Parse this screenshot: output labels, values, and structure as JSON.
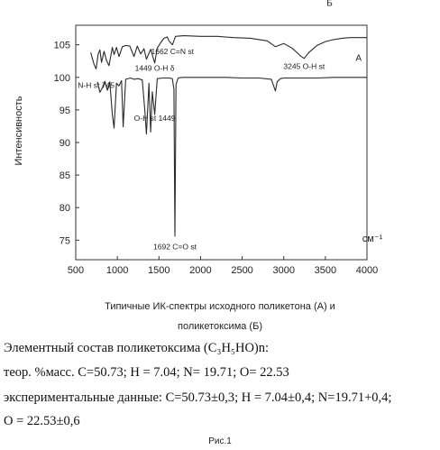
{
  "chart_data": {
    "type": "line",
    "xlabel": "см⁻¹",
    "ylabel": "Интенсивность",
    "xlim": [
      500,
      4000
    ],
    "ylim": [
      72,
      108
    ],
    "x_ticks": [
      500,
      1000,
      1500,
      2000,
      2500,
      3000,
      3500,
      4000
    ],
    "x_tick_labels": [
      "500",
      "1000",
      "1500",
      "2000",
      "2500",
      "3000",
      "3500",
      "4000"
    ],
    "y_ticks": [
      75,
      80,
      85,
      90,
      95,
      100,
      105
    ],
    "y_tick_labels": [
      "75",
      "80",
      "85",
      "90",
      "95",
      "100",
      "105"
    ],
    "grid": false,
    "legend": "none",
    "series": [
      {
        "name": "Б",
        "color": "#2a2a2a",
        "x": [
          680,
          720,
          745,
          770,
          790,
          810,
          840,
          870,
          900,
          940,
          960,
          990,
          1020,
          1060,
          1100,
          1150,
          1200,
          1240,
          1280,
          1320,
          1350,
          1400,
          1449,
          1480,
          1520,
          1560,
          1600,
          1620,
          1662,
          1700,
          1800,
          2000,
          2200,
          2400,
          2600,
          2800,
          2900,
          3000,
          3100,
          3200,
          3245,
          3300,
          3400,
          3500,
          3600,
          3700,
          3800,
          3900,
          4000
        ],
        "y": [
          103.8,
          102.0,
          101.3,
          103.6,
          104.2,
          102.3,
          104.0,
          102.6,
          101.8,
          104.6,
          103.5,
          104.6,
          103.2,
          104.7,
          104.9,
          104.8,
          103.2,
          104.8,
          103.6,
          104.4,
          102.8,
          104.3,
          102.2,
          104.5,
          105.3,
          106.0,
          106.2,
          105.6,
          105.0,
          106.3,
          106.4,
          106.3,
          106.3,
          106.1,
          106.0,
          105.6,
          104.7,
          105.2,
          104.5,
          103.3,
          102.9,
          103.8,
          104.9,
          105.5,
          105.8,
          106.0,
          106.1,
          106.1,
          106.1
        ]
      },
      {
        "name": "А",
        "color": "#2a2a2a",
        "x": [
          760,
          790,
          820,
          850,
          880,
          910,
          940,
          960,
          990,
          1020,
          1050,
          1070,
          1100,
          1160,
          1200,
          1250,
          1300,
          1330,
          1350,
          1380,
          1400,
          1420,
          1449,
          1480,
          1550,
          1620,
          1660,
          1680,
          1692,
          1705,
          1730,
          1780,
          1900,
          2100,
          2300,
          2500,
          2700,
          2850,
          2900,
          2920,
          2960,
          3000,
          3200,
          3400,
          3600,
          3800,
          4000
        ],
        "y": [
          99.3,
          97.7,
          98.4,
          99.4,
          98.0,
          99.3,
          94.3,
          92.2,
          99.1,
          98.7,
          99.5,
          92.4,
          99.7,
          99.9,
          99.7,
          99.8,
          99.6,
          95.0,
          91.3,
          99.1,
          91.6,
          97.8,
          94.3,
          99.8,
          99.9,
          99.9,
          99.8,
          98.2,
          75.6,
          98.9,
          99.9,
          100.0,
          100.0,
          100.0,
          100.0,
          99.9,
          99.9,
          99.7,
          97.9,
          99.3,
          99.8,
          99.9,
          99.9,
          99.9,
          100.0,
          100.0,
          100.0
        ]
      }
    ],
    "annotations": [
      {
        "text": "1662 C=N st",
        "x": 1662,
        "y": 103.6
      },
      {
        "text": "1449 O-H δ",
        "x": 1449,
        "y": 101.0
      },
      {
        "text": "3245 O-H st",
        "x": 3245,
        "y": 101.3
      },
      {
        "text": "N-H st 745",
        "x": 745,
        "y": 98.4
      },
      {
        "text": "O-H st 1449",
        "x": 1449,
        "y": 93.3
      },
      {
        "text": "1692  C=O st",
        "x": 1692,
        "y": 73.6
      }
    ],
    "series_labels": [
      {
        "text": "Б",
        "x": 3550,
        "y": 111.0
      },
      {
        "text": "А",
        "x": 3900,
        "y": 102.5
      }
    ]
  },
  "caption": {
    "line1": "Типичные  ИК-спектры исходного поликетона  (А)  и",
    "line2": "поликетоксима (Б)"
  },
  "composition": {
    "title": "Элементный состав поликетоксима (C₃H₅HO)n:",
    "theory": "теор. %масс.   C=50.73; H = 7.04; N= 19.71; O= 22.53",
    "experiment": " экспериментальные данные: C=50.73±0,3; H = 7.04±0,4; N=19.71+0,4;",
    "oxygen": " O = 22.53±0,6"
  },
  "figure_label": "Рис.1"
}
